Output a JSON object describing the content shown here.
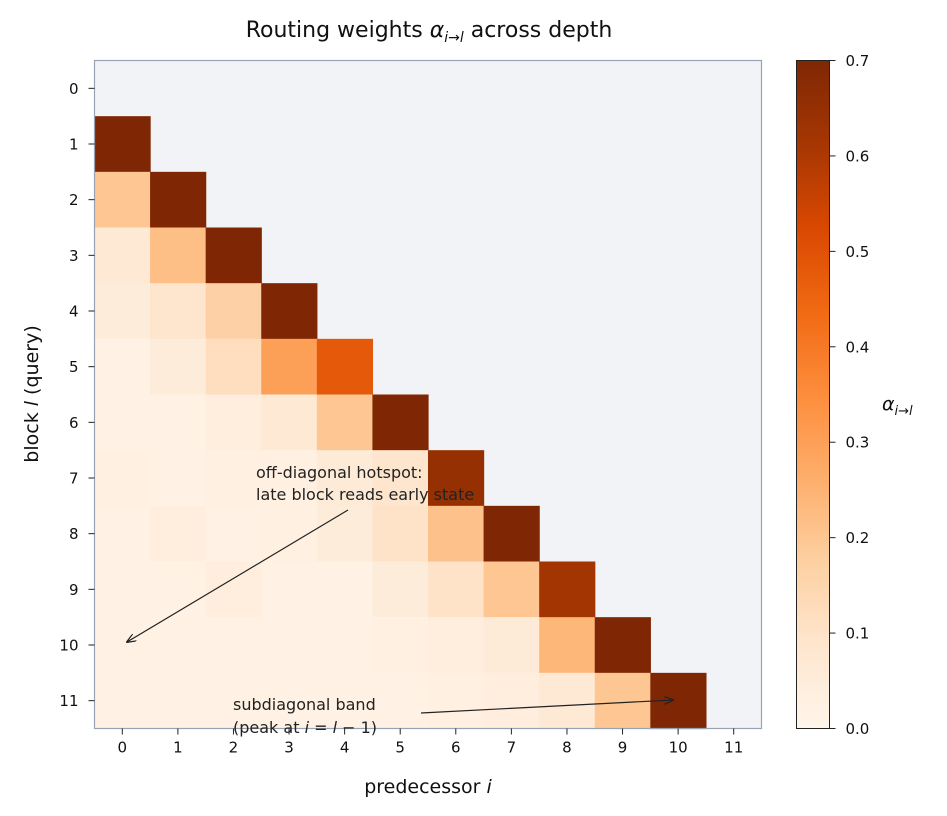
{
  "chart_data": {
    "type": "heatmap",
    "title_text": "Routing weights ",
    "title_symbol": "α",
    "title_sub": "i→l",
    "title_rest": " across depth",
    "xlabel_text": "predecessor ",
    "xlabel_var": "i",
    "ylabel_text_pre": "block ",
    "ylabel_var": "l",
    "ylabel_text_post": " (query)",
    "x_ticks": [
      "0",
      "1",
      "2",
      "3",
      "4",
      "5",
      "6",
      "7",
      "8",
      "9",
      "10",
      "11"
    ],
    "y_ticks": [
      "0",
      "1",
      "2",
      "3",
      "4",
      "5",
      "6",
      "7",
      "8",
      "9",
      "10",
      "11"
    ],
    "colorbar": {
      "label_symbol": "α",
      "label_sub": "i→l",
      "ticks": [
        "0.0",
        "0.1",
        "0.2",
        "0.3",
        "0.4",
        "0.5",
        "0.6",
        "0.7"
      ],
      "vmin": 0.0,
      "vmax": 0.7,
      "colormap": "Oranges"
    },
    "masked_color": "#f2f3f6",
    "values": [
      [
        null,
        null,
        null,
        null,
        null,
        null,
        null,
        null,
        null,
        null,
        null,
        null
      ],
      [
        0.7,
        null,
        null,
        null,
        null,
        null,
        null,
        null,
        null,
        null,
        null,
        null
      ],
      [
        0.2,
        0.7,
        null,
        null,
        null,
        null,
        null,
        null,
        null,
        null,
        null,
        null
      ],
      [
        0.07,
        0.22,
        0.7,
        null,
        null,
        null,
        null,
        null,
        null,
        null,
        null,
        null
      ],
      [
        0.05,
        0.09,
        0.17,
        0.7,
        null,
        null,
        null,
        null,
        null,
        null,
        null,
        null
      ],
      [
        0.02,
        0.05,
        0.12,
        0.3,
        0.48,
        null,
        null,
        null,
        null,
        null,
        null,
        null
      ],
      [
        0.02,
        0.02,
        0.04,
        0.07,
        0.2,
        0.7,
        null,
        null,
        null,
        null,
        null,
        null
      ],
      [
        0.03,
        0.02,
        0.03,
        0.03,
        0.06,
        0.09,
        0.65,
        null,
        null,
        null,
        null,
        null
      ],
      [
        0.02,
        0.04,
        0.02,
        0.03,
        0.05,
        0.1,
        0.21,
        0.7,
        null,
        null,
        null,
        null
      ],
      [
        0.02,
        0.02,
        0.04,
        0.02,
        0.02,
        0.05,
        0.1,
        0.2,
        0.62,
        null,
        null,
        null
      ],
      [
        0.02,
        0.02,
        0.02,
        0.02,
        0.02,
        0.03,
        0.04,
        0.06,
        0.24,
        0.7,
        null,
        null
      ],
      [
        0.02,
        0.02,
        0.02,
        0.02,
        0.02,
        0.02,
        0.03,
        0.04,
        0.07,
        0.2,
        0.7,
        null
      ]
    ],
    "annotations": [
      {
        "id": "hotspot",
        "lines": [
          "off-diagonal hotspot:",
          "late block reads early state"
        ],
        "arrow_to": [
          0,
          10
        ]
      },
      {
        "id": "band",
        "line1": "subdiagonal band",
        "line2_pre": "(peak at ",
        "line2_var1": "i",
        "line2_mid": " = ",
        "line2_var2": "l",
        "line2_post": " − 1)",
        "arrow_to": [
          10,
          11
        ]
      }
    ]
  }
}
